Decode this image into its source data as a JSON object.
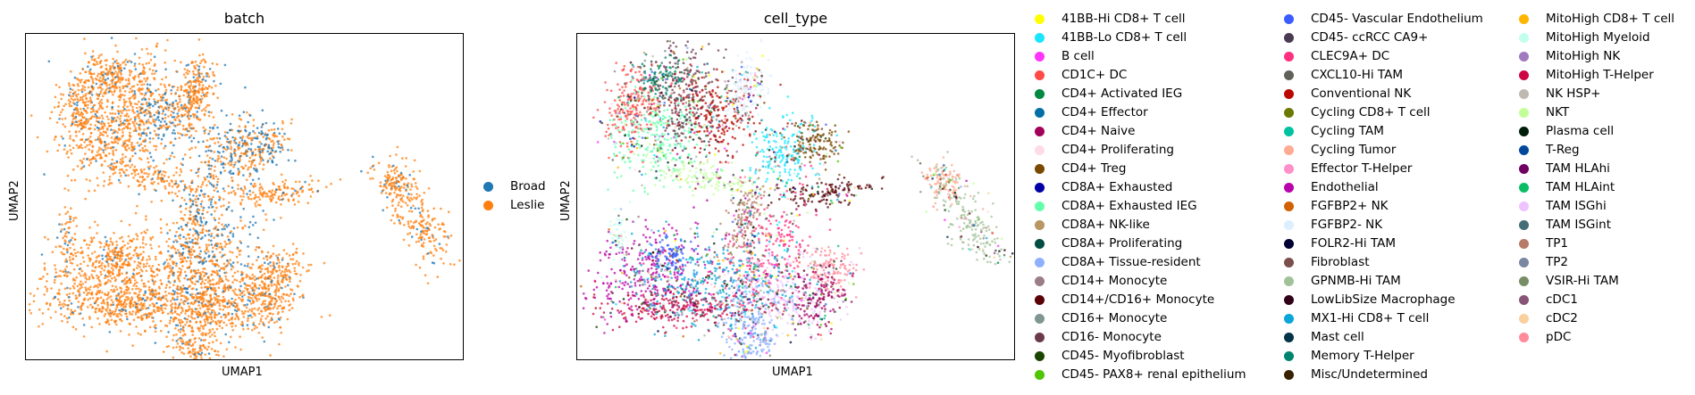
{
  "chart_data": [
    {
      "type": "scatter",
      "title": "batch",
      "xlabel": "UMAP1",
      "ylabel": "UMAP2",
      "grid": false,
      "legend_placement": "right",
      "series": [
        {
          "name": "Broad",
          "color": "#1f77b4"
        },
        {
          "name": "Leslie",
          "color": "#ff7f0e"
        }
      ]
    },
    {
      "type": "scatter",
      "title": "cell_type",
      "xlabel": "UMAP1",
      "ylabel": "UMAP2",
      "grid": false,
      "legend_placement": "right",
      "series": [
        {
          "name": "41BB-Hi CD8+ T cell",
          "color": "#ffff00"
        },
        {
          "name": "41BB-Lo CD8+ T cell",
          "color": "#1ce6ff"
        },
        {
          "name": "B cell",
          "color": "#ff34ff"
        },
        {
          "name": "CD1C+ DC",
          "color": "#ff4a46"
        },
        {
          "name": "CD4+ Activated IEG",
          "color": "#008941"
        },
        {
          "name": "CD4+ Effector",
          "color": "#006fa6"
        },
        {
          "name": "CD4+ Naive",
          "color": "#a30059"
        },
        {
          "name": "CD4+ Proliferating",
          "color": "#ffdbe5"
        },
        {
          "name": "CD4+ Treg",
          "color": "#7a4900"
        },
        {
          "name": "CD8A+ Exhausted",
          "color": "#0000a6"
        },
        {
          "name": "CD8A+ Exhausted IEG",
          "color": "#63ffac"
        },
        {
          "name": "CD8A+ NK-like",
          "color": "#b79762"
        },
        {
          "name": "CD8A+ Proliferating",
          "color": "#004d43"
        },
        {
          "name": "CD8A+ Tissue-resident",
          "color": "#8fb0ff"
        },
        {
          "name": "CD14+ Monocyte",
          "color": "#997d87"
        },
        {
          "name": "CD14+/CD16+ Monocyte",
          "color": "#5a0007"
        },
        {
          "name": "CD16+ Monocyte",
          "color": "#809693"
        },
        {
          "name": "CD16- Monocyte",
          "color": "#6a3a4c"
        },
        {
          "name": "CD45- Myofibroblast",
          "color": "#1b4400"
        },
        {
          "name": "CD45- PAX8+ renal epithelium",
          "color": "#4fc601"
        },
        {
          "name": "CD45- Vascular Endothelium",
          "color": "#3b5dff"
        },
        {
          "name": "CD45- ccRCC CA9+",
          "color": "#4a3b53"
        },
        {
          "name": "CLEC9A+ DC",
          "color": "#ff2f80"
        },
        {
          "name": "CXCL10-Hi TAM",
          "color": "#61615a"
        },
        {
          "name": "Conventional NK",
          "color": "#ba0900"
        },
        {
          "name": "Cycling CD8+ T cell",
          "color": "#6b7900"
        },
        {
          "name": "Cycling TAM",
          "color": "#00c2a0"
        },
        {
          "name": "Cycling Tumor",
          "color": "#ffaa92"
        },
        {
          "name": "Effector T-Helper",
          "color": "#ff90c9"
        },
        {
          "name": "Endothelial",
          "color": "#b903aa"
        },
        {
          "name": "FGFBP2+ NK",
          "color": "#d16100"
        },
        {
          "name": "FGFBP2- NK",
          "color": "#ddefff"
        },
        {
          "name": "FOLR2-Hi TAM",
          "color": "#000035"
        },
        {
          "name": "Fibroblast",
          "color": "#7b4f4b"
        },
        {
          "name": "GPNMB-Hi TAM",
          "color": "#a1c299"
        },
        {
          "name": "LowLibSize Macrophage",
          "color": "#300018"
        },
        {
          "name": "MX1-Hi CD8+ T cell",
          "color": "#0aa6d8"
        },
        {
          "name": "Mast cell",
          "color": "#013349"
        },
        {
          "name": "Memory T-Helper",
          "color": "#00846f"
        },
        {
          "name": "Misc/Undetermined",
          "color": "#372101"
        },
        {
          "name": "MitoHigh CD8+ T cell",
          "color": "#ffb500"
        },
        {
          "name": "MitoHigh Myeloid",
          "color": "#c2ffed"
        },
        {
          "name": "MitoHigh NK",
          "color": "#a079bf"
        },
        {
          "name": "MitoHigh T-Helper",
          "color": "#cc0744"
        },
        {
          "name": "NK HSP+",
          "color": "#c0b9b2"
        },
        {
          "name": "NKT",
          "color": "#c2ff99"
        },
        {
          "name": "Plasma cell",
          "color": "#001e09"
        },
        {
          "name": "T-Reg",
          "color": "#00489c"
        },
        {
          "name": "TAM HLAhi",
          "color": "#6f0062"
        },
        {
          "name": "TAM HLAint",
          "color": "#0cbd66"
        },
        {
          "name": "TAM ISGhi",
          "color": "#eec3ff"
        },
        {
          "name": "TAM ISGint",
          "color": "#456d75"
        },
        {
          "name": "TP1",
          "color": "#b77b68"
        },
        {
          "name": "TP2",
          "color": "#7a87a1"
        },
        {
          "name": "VSIR-Hi TAM",
          "color": "#788d66"
        },
        {
          "name": "cDC1",
          "color": "#885578"
        },
        {
          "name": "cDC2",
          "color": "#fad09f"
        },
        {
          "name": "pDC",
          "color": "#ff8a9a"
        }
      ]
    }
  ]
}
